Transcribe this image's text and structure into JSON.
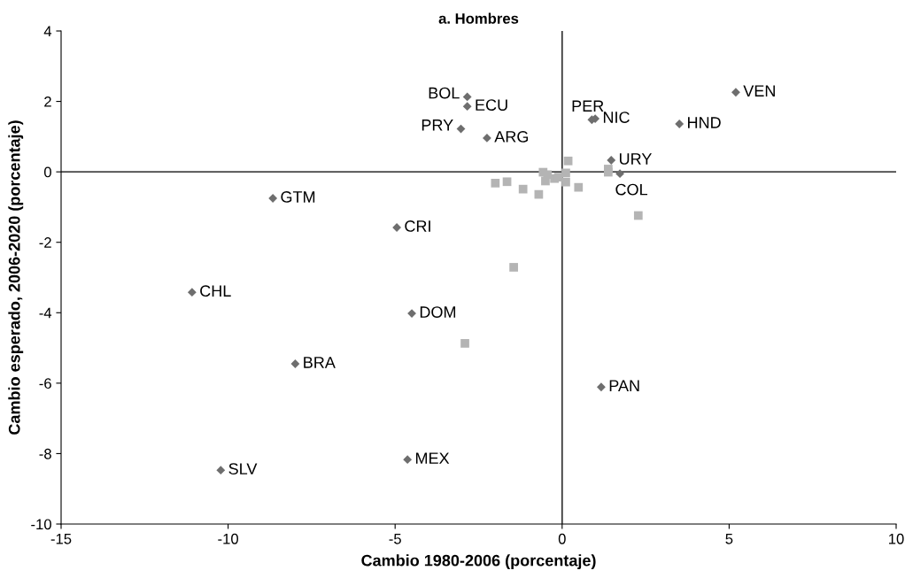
{
  "chart_data": {
    "type": "scatter",
    "title": "a. Hombres",
    "xlabel": "Cambio 1980-2006 (porcentaje)",
    "ylabel": "Cambio esperado, 2006-2020 (porcentaje)",
    "xlim": [
      -15,
      10
    ],
    "ylim": [
      -10,
      4
    ],
    "xticks": [
      -15,
      -10,
      -5,
      0,
      5,
      10
    ],
    "yticks": [
      -10,
      -8,
      -6,
      -4,
      -2,
      0,
      2,
      4
    ],
    "grid": false,
    "ref_lines": [
      {
        "axis": "x",
        "value": 0,
        "color": "#3c3c3c"
      },
      {
        "axis": "y",
        "value": 0,
        "color": "#474747"
      }
    ],
    "series": [
      {
        "color": "#6e6e6e",
        "marker": "diamond",
        "x": [
          5.2,
          3.51,
          0.89,
          0.99,
          -2.84,
          -2.84,
          -3.03,
          -2.25,
          1.47,
          1.73,
          -8.66,
          -4.95,
          -11.08,
          -4.5,
          -7.99,
          -10.22,
          -4.63,
          1.17
        ],
        "values": [
          2.26,
          1.36,
          1.48,
          1.51,
          2.13,
          1.86,
          1.22,
          0.96,
          0.33,
          -0.05,
          -0.75,
          -1.58,
          -3.42,
          -4.02,
          -5.45,
          -8.47,
          -8.17,
          -6.11
        ]
      },
      {
        "color": "#b4b4b4",
        "marker": "square",
        "x": [
          0.18,
          -0.57,
          -0.44,
          -0.5,
          -0.23,
          -0.11,
          0.11,
          0.11,
          0.49,
          -2.0,
          -1.65,
          -1.17,
          -0.7,
          1.38,
          1.38,
          2.28,
          -1.45,
          -2.91
        ],
        "values": [
          0.31,
          -0.01,
          -0.08,
          -0.26,
          -0.19,
          -0.15,
          -0.03,
          -0.29,
          -0.44,
          -0.32,
          -0.28,
          -0.49,
          -0.64,
          0.08,
          -0.01,
          -1.24,
          -2.71,
          -4.87
        ]
      }
    ],
    "annotations": [
      {
        "text": "VEN",
        "x": 5.2,
        "y": 2.26
      },
      {
        "text": "HND",
        "x": 3.51,
        "y": 1.36
      },
      {
        "text": "PER",
        "x": 0.89,
        "y": 1.48
      },
      {
        "text": "NIC",
        "x": 0.99,
        "y": 1.51
      },
      {
        "text": "BOL",
        "x": -2.84,
        "y": 2.13
      },
      {
        "text": "ECU",
        "x": -2.84,
        "y": 1.86
      },
      {
        "text": "PRY",
        "x": -3.03,
        "y": 1.22
      },
      {
        "text": "ARG",
        "x": -2.25,
        "y": 0.96
      },
      {
        "text": "URY",
        "x": 1.47,
        "y": 0.33
      },
      {
        "text": "COL",
        "x": 1.73,
        "y": -0.05
      },
      {
        "text": "GTM",
        "x": -8.66,
        "y": -0.75
      },
      {
        "text": "CRI",
        "x": -4.95,
        "y": -1.58
      },
      {
        "text": "CHL",
        "x": -11.08,
        "y": -3.42
      },
      {
        "text": "DOM",
        "x": -4.5,
        "y": -4.02
      },
      {
        "text": "BRA",
        "x": -7.99,
        "y": -5.45
      },
      {
        "text": "SLV",
        "x": -10.22,
        "y": -8.47
      },
      {
        "text": "MEX",
        "x": -4.63,
        "y": -8.17
      },
      {
        "text": "PAN",
        "x": 1.17,
        "y": -6.11
      }
    ]
  }
}
